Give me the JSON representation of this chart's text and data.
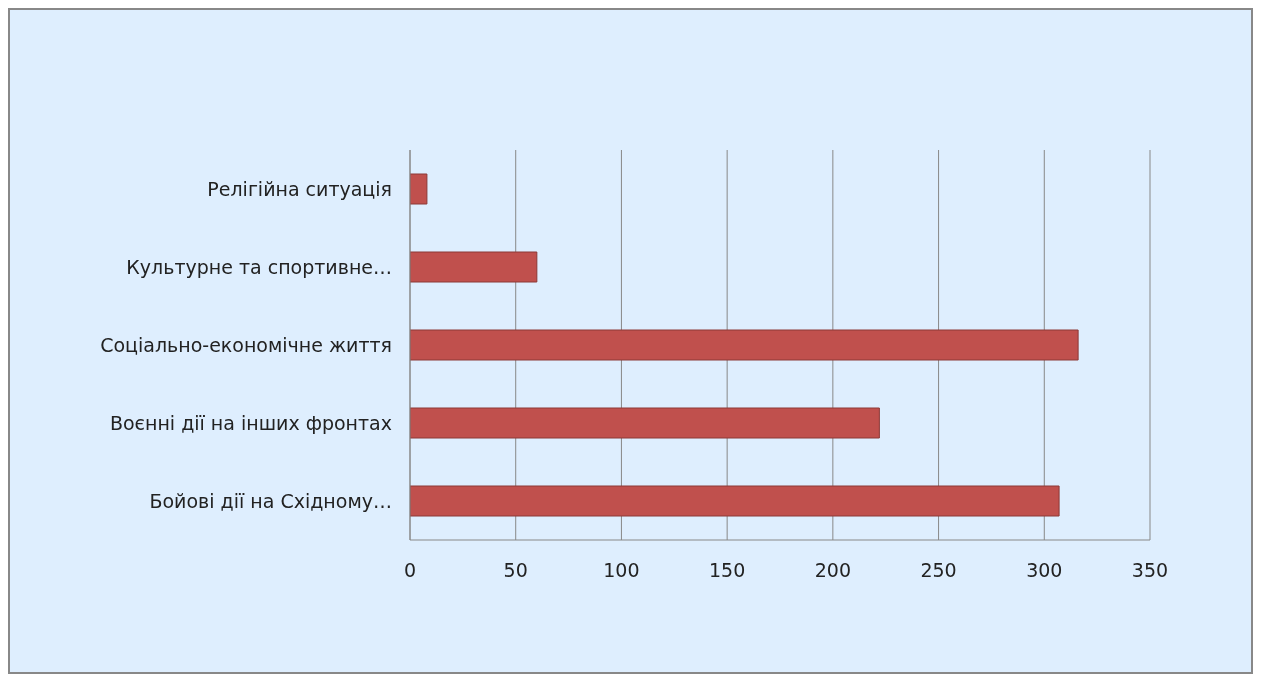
{
  "chart_data": {
    "type": "bar",
    "orientation": "horizontal",
    "categories": [
      "Релігійна ситуація",
      "Культурне та спортивне…",
      "Соціально-економічне життя",
      "Воєнні дії на інших фронтах",
      "Бойові дії на Східному…"
    ],
    "values": [
      8,
      60,
      316,
      222,
      307
    ],
    "color": "#c0504d",
    "xlim": [
      0,
      350
    ],
    "xticks": [
      0,
      50,
      100,
      150,
      200,
      250,
      300,
      350
    ],
    "grid": "x"
  }
}
